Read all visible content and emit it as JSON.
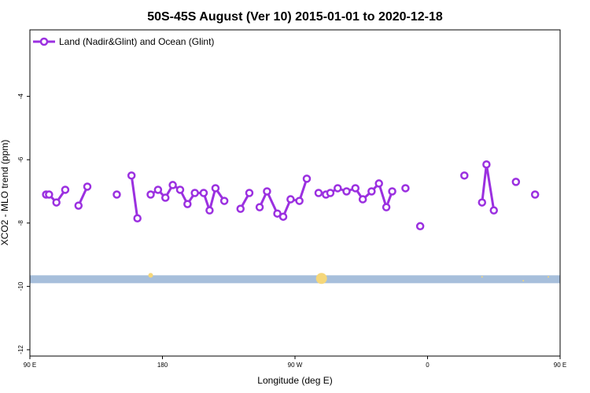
{
  "chart_data": {
    "type": "line",
    "title": "50S-45S August (Ver 10)   2015-01-01 to 2020-12-18",
    "xlabel": "Longitude (deg E)",
    "ylabel": "XCO2 - MLO trend (ppm)",
    "xlim": [
      90,
      450
    ],
    "ylim": [
      -12.2,
      -1.9
    ],
    "x_ticks": [
      {
        "value": 90,
        "label": "90 E"
      },
      {
        "value": 180,
        "label": "180"
      },
      {
        "value": 270,
        "label": "90 W"
      },
      {
        "value": 360,
        "label": "0"
      },
      {
        "value": 450,
        "label": "90 E"
      },
      {
        "value": 540,
        "label": "180"
      }
    ],
    "y_ticks": [
      {
        "value": -4,
        "label": "-4"
      },
      {
        "value": -6,
        "label": "-6"
      },
      {
        "value": -8,
        "label": "-8"
      },
      {
        "value": -10,
        "label": "-10"
      },
      {
        "value": -12,
        "label": "-12"
      }
    ],
    "grid": false,
    "legend_position": "top-left",
    "series": [
      {
        "name": "Land (Nadir&Glint) and Ocean (Glint)",
        "color": "#9b30e0",
        "segments": [
          [
            [
              101,
              -7.1
            ],
            [
              103,
              -7.1
            ],
            [
              108,
              -7.35
            ],
            [
              114,
              -6.95
            ]
          ],
          [
            [
              123,
              -7.45
            ],
            [
              129,
              -6.85
            ]
          ],
          [
            [
              149,
              -7.1
            ]
          ],
          [
            [
              159,
              -6.5
            ],
            [
              163,
              -7.85
            ]
          ],
          [
            [
              172,
              -7.1
            ],
            [
              177,
              -6.95
            ],
            [
              182,
              -7.2
            ],
            [
              187,
              -6.8
            ],
            [
              192,
              -6.95
            ],
            [
              197,
              -7.4
            ],
            [
              202,
              -7.05
            ],
            [
              208,
              -7.05
            ],
            [
              212,
              -7.6
            ],
            [
              216,
              -6.9
            ],
            [
              222,
              -7.3
            ]
          ],
          [
            [
              233,
              -7.55
            ],
            [
              239,
              -7.05
            ]
          ],
          [
            [
              246,
              -7.5
            ],
            [
              251,
              -7.0
            ],
            [
              258,
              -7.7
            ],
            [
              262,
              -7.8
            ],
            [
              267,
              -7.25
            ],
            [
              273,
              -7.3
            ],
            [
              278,
              -6.6
            ]
          ],
          [
            [
              286,
              -7.05
            ],
            [
              291,
              -7.1
            ],
            [
              294,
              -7.05
            ],
            [
              299,
              -6.9
            ],
            [
              305,
              -7.0
            ],
            [
              311,
              -6.9
            ],
            [
              316,
              -7.25
            ],
            [
              322,
              -7.0
            ],
            [
              327,
              -6.75
            ],
            [
              332,
              -7.5
            ],
            [
              336,
              -7.0
            ]
          ],
          [
            [
              345,
              -6.9
            ]
          ],
          [
            [
              355,
              -8.1
            ]
          ],
          [
            [
              385,
              -6.5
            ]
          ],
          [
            [
              397,
              -7.35
            ],
            [
              400,
              -6.15
            ],
            [
              405,
              -7.6
            ]
          ],
          [
            [
              420,
              -6.7
            ]
          ],
          [
            [
              433,
              -7.1
            ]
          ]
        ]
      }
    ],
    "band": {
      "y_from": -9.65,
      "y_to": -9.9,
      "color": "#a7bfdb"
    },
    "markers": [
      {
        "x": 172,
        "y": -9.65,
        "size": 3,
        "color": "#f5d77a"
      },
      {
        "x": 288,
        "y": -9.75,
        "size": 7,
        "color": "#f5d77a"
      },
      {
        "x": 397,
        "y": -9.7,
        "size": 1,
        "color": "#f5d77a"
      },
      {
        "x": 425,
        "y": -9.82,
        "size": 1,
        "color": "#f5d77a"
      },
      {
        "x": 442,
        "y": -9.7,
        "size": 1,
        "color": "#f5d77a"
      }
    ]
  }
}
